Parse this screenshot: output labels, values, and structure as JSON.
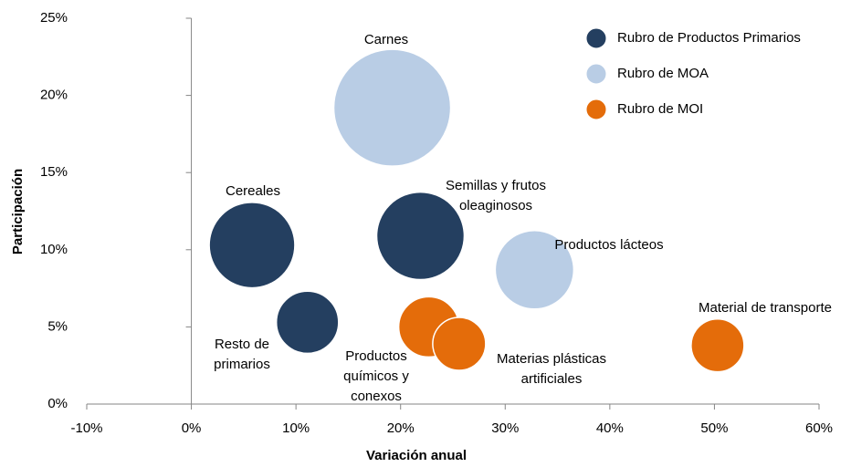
{
  "chart_data": {
    "type": "bubble",
    "xlabel": "Variación anual",
    "ylabel": "Participación",
    "xlim": [
      -10,
      60
    ],
    "xticks": [
      {
        "value": -10,
        "label": "-10%"
      },
      {
        "value": 0,
        "label": "0%"
      },
      {
        "value": 10,
        "label": "10%"
      },
      {
        "value": 20,
        "label": "20%"
      },
      {
        "value": 30,
        "label": "30%"
      },
      {
        "value": 40,
        "label": "40%"
      },
      {
        "value": 50,
        "label": "50%"
      },
      {
        "value": 60,
        "label": "60%"
      }
    ],
    "ylim": [
      0,
      25
    ],
    "yticks": [
      {
        "value": 0,
        "label": "0%"
      },
      {
        "value": 5,
        "label": "5%"
      },
      {
        "value": 10,
        "label": "10%"
      },
      {
        "value": 15,
        "label": "15%"
      },
      {
        "value": 20,
        "label": "20%"
      },
      {
        "value": 25,
        "label": "25%"
      }
    ],
    "legend": "upper right",
    "series": [
      {
        "name": "Rubro de Productos Primarios",
        "color": "#243f60",
        "x": [
          5.8,
          21.9,
          11.1
        ],
        "values": [
          10.3,
          10.9,
          5.3
        ],
        "sizes": [
          22,
          23,
          11.6
        ],
        "labels": [
          [
            "Cereales"
          ],
          [
            "Semillas y frutos",
            "oleaginosos"
          ],
          [
            "Resto de",
            "primarios"
          ]
        ]
      },
      {
        "name": "Rubro de MOA",
        "color": "#b9cde5",
        "x": [
          19.2,
          32.8
        ],
        "values": [
          19.2,
          8.7
        ],
        "sizes": [
          41,
          18.5
        ],
        "labels": [
          [
            "Carnes"
          ],
          [
            "Productos lácteos"
          ]
        ]
      },
      {
        "name": "Rubro de MOI",
        "color": "#e46c0a",
        "x": [
          22.7,
          25.6,
          50.3
        ],
        "values": [
          5.0,
          3.9,
          3.8
        ],
        "sizes": [
          10.9,
          8.4,
          8.4
        ],
        "labels": [
          [
            "Productos",
            "químicos y",
            "conexos"
          ],
          [
            "Materias plásticas",
            "artificiales"
          ],
          [
            "Material de transporte"
          ]
        ]
      }
    ]
  }
}
